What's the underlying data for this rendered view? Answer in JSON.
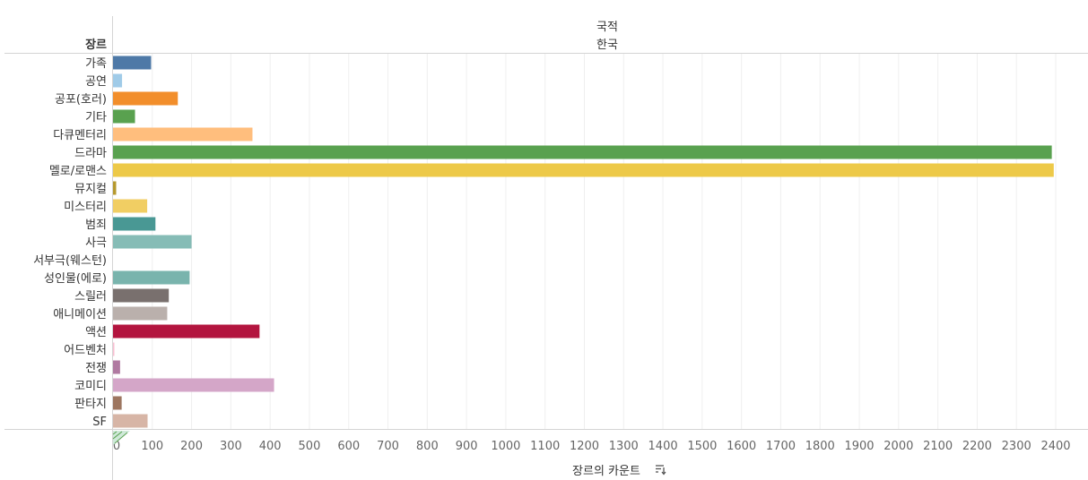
{
  "header": {
    "column_field": "국적",
    "column_value": "한국",
    "row_field": "장르"
  },
  "chart_data": {
    "type": "bar",
    "orientation": "horizontal",
    "xlabel": "장르의 카운트",
    "xlim": [
      0,
      2400
    ],
    "x_ticks": [
      0,
      100,
      200,
      300,
      400,
      500,
      600,
      700,
      800,
      900,
      1000,
      1100,
      1200,
      1300,
      1400,
      1500,
      1600,
      1700,
      1800,
      1900,
      2000,
      2100,
      2200,
      2300,
      2400
    ],
    "grid": true,
    "categories": [
      "가족",
      "공연",
      "공포(호러)",
      "기타",
      "다큐멘터리",
      "드라마",
      "멜로/로맨스",
      "뮤지컬",
      "미스터리",
      "범죄",
      "사극",
      "서부극(웨스턴)",
      "성인물(에로)",
      "스릴러",
      "애니메이션",
      "액션",
      "어드벤처",
      "전쟁",
      "코미디",
      "판타지",
      "SF"
    ],
    "values": [
      97,
      23,
      165,
      56,
      355,
      2390,
      2395,
      8,
      87,
      108,
      200,
      0,
      195,
      142,
      138,
      373,
      3,
      18,
      410,
      22,
      88
    ],
    "colors": [
      "#4e79a7",
      "#a0cbe8",
      "#f28e2b",
      "#59a14f",
      "#ffbe7d",
      "#59a14f",
      "#edc948",
      "#b6992d",
      "#f1ce63",
      "#499894",
      "#86bcb6",
      "#e15759",
      "#79b4ad",
      "#79706e",
      "#bab0ac",
      "#b3153f",
      "#fabfd2",
      "#b07aa1",
      "#d4a6c8",
      "#9d7660",
      "#d7b5a6"
    ]
  }
}
